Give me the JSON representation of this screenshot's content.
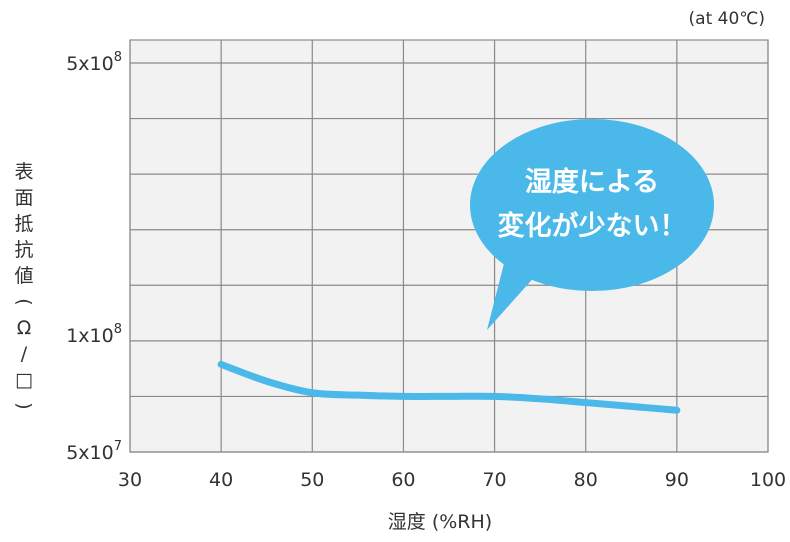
{
  "chart_data": {
    "type": "line",
    "note": "(at 40℃)",
    "xlabel": "湿度 (%RH)",
    "ylabel": "表面抵抗値 (Ω/□)",
    "x_ticks": [
      "30",
      "40",
      "50",
      "60",
      "70",
      "80",
      "90",
      "100"
    ],
    "y_ticks": [
      {
        "value": 500000000,
        "base": "5x10",
        "exp": "8"
      },
      {
        "value": 100000000,
        "base": "1x10",
        "exp": "8"
      },
      {
        "value": 50000000,
        "base": "5x10",
        "exp": "7"
      }
    ],
    "xlim": [
      30,
      100
    ],
    "ylim": [
      50000000,
      500000000
    ],
    "y_scale": "log",
    "grid": true,
    "series": [
      {
        "color": "#4ab8e8",
        "points": [
          {
            "x": 40,
            "y": 84000000
          },
          {
            "x": 45,
            "y": 76000000
          },
          {
            "x": 50,
            "y": 71000000
          },
          {
            "x": 55,
            "y": 70000000
          },
          {
            "x": 60,
            "y": 69500000
          },
          {
            "x": 65,
            "y": 69500000
          },
          {
            "x": 70,
            "y": 69500000
          },
          {
            "x": 75,
            "y": 68500000
          },
          {
            "x": 80,
            "y": 67000000
          },
          {
            "x": 85,
            "y": 65500000
          },
          {
            "x": 90,
            "y": 64000000
          }
        ]
      }
    ],
    "annotation": {
      "lines": [
        "湿度による",
        "変化が少ない！"
      ],
      "color": "#4ab8e8"
    }
  }
}
